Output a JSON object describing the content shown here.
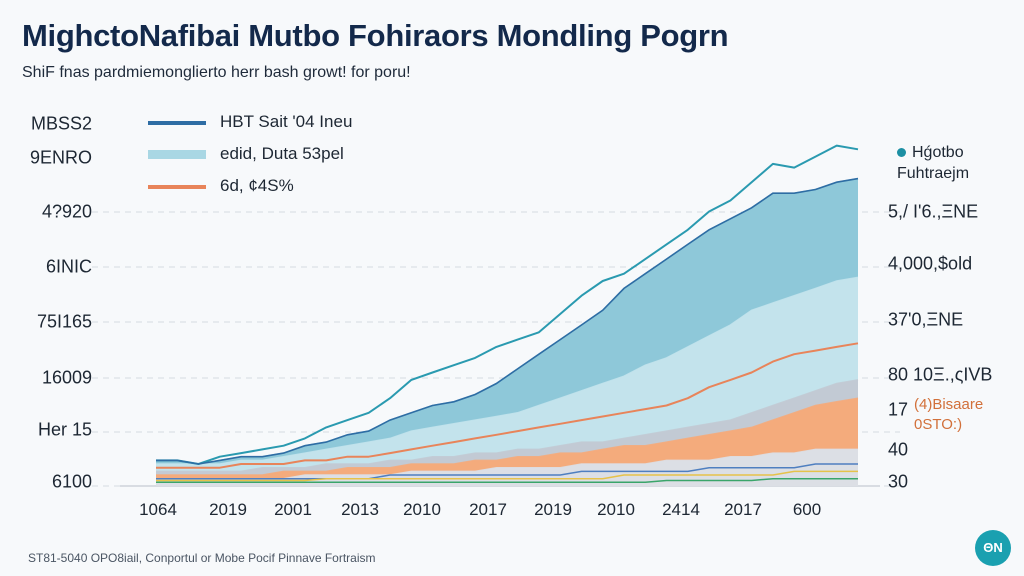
{
  "chart_data": {
    "type": "area",
    "title": "MighctoNafibai Mutbo Fohiraors Mondling Pogrn",
    "subtitle": "ShiF fnas pardmiemonglierto herr bash growt! for poru!",
    "x_tick_labels": [
      "1064",
      "2019",
      "2001",
      "2013",
      "2010",
      "2017",
      "2019",
      "2010",
      "2414",
      "2017",
      "600"
    ],
    "y_axis_label": "MBSS2",
    "y_tick_labels_left": [
      "9ENRO",
      "4?920",
      "6INIC",
      "75I165",
      "16009",
      "Her 15",
      "6100"
    ],
    "y_tick_labels_right": [
      "5,/ I'6.,ΞNE",
      "4,000,$old",
      "37'0,ΞNE",
      "80 10Ξ.,ςIVB",
      "17",
      "40",
      "30"
    ],
    "ylim": [
      0,
      100
    ],
    "legend": [
      {
        "label": "HBT Sait '04 Ineu",
        "kind": "line",
        "color": "#2e6da4"
      },
      {
        "label": "edid, Duta 53pel",
        "kind": "area",
        "color": "#a9d7e4"
      },
      {
        "label": "6d, ¢4S%",
        "kind": "line",
        "color": "#e8845a"
      }
    ],
    "annotation": "Hǵotbo Fuhtraejm",
    "orange_note": [
      "(4)Bisaare",
      "0STO:)"
    ],
    "series": [
      {
        "name": "HBT Sait '04 Ineu",
        "kind": "line",
        "color": "#2a9ab0",
        "values": [
          7,
          7,
          6,
          8,
          9,
          10,
          11,
          13,
          16,
          18,
          20,
          24,
          29,
          31,
          33,
          35,
          38,
          40,
          42,
          47,
          52,
          56,
          58,
          62,
          66,
          70,
          75,
          78,
          83,
          88,
          87,
          90,
          93,
          92
        ]
      },
      {
        "name": "Upper area",
        "kind": "area",
        "color": "#8ec8d9",
        "values": [
          7,
          7,
          6,
          7,
          8,
          8,
          9,
          11,
          12,
          14,
          15,
          18,
          20,
          22,
          23,
          25,
          28,
          32,
          36,
          40,
          44,
          48,
          54,
          58,
          62,
          66,
          70,
          73,
          76,
          80,
          80,
          81,
          83,
          84
        ]
      },
      {
        "name": "edid, Duta 53pel",
        "kind": "area",
        "color": "#c3e3ec",
        "values": [
          6,
          6,
          6,
          6,
          7,
          7,
          8,
          9,
          10,
          11,
          12,
          13,
          15,
          16,
          17,
          18,
          19,
          20,
          22,
          24,
          26,
          28,
          30,
          33,
          35,
          38,
          41,
          44,
          48,
          50,
          52,
          54,
          56,
          57
        ]
      },
      {
        "name": "6d, ¢4S%",
        "kind": "line",
        "color": "#e8845a",
        "values": [
          5,
          5,
          5,
          5,
          6,
          6,
          6,
          7,
          7,
          8,
          8,
          9,
          10,
          11,
          12,
          13,
          14,
          15,
          16,
          17,
          18,
          19,
          20,
          21,
          22,
          24,
          27,
          29,
          31,
          34,
          36,
          37,
          38,
          39
        ]
      },
      {
        "name": "Grey band",
        "kind": "area",
        "color": "#c2cad4",
        "values": [
          4,
          4,
          4,
          4,
          4,
          5,
          5,
          5,
          6,
          6,
          6,
          7,
          7,
          8,
          8,
          9,
          9,
          10,
          10,
          11,
          12,
          12,
          13,
          14,
          15,
          16,
          17,
          18,
          20,
          22,
          24,
          26,
          28,
          29
        ]
      },
      {
        "name": "Orange band",
        "kind": "area",
        "color": "#f4ab7c",
        "values": [
          3,
          3,
          3,
          3,
          3,
          3,
          4,
          4,
          4,
          5,
          5,
          5,
          6,
          6,
          6,
          7,
          7,
          8,
          8,
          9,
          9,
          10,
          11,
          11,
          12,
          13,
          14,
          15,
          16,
          18,
          20,
          22,
          23,
          24
        ]
      },
      {
        "name": "Light grey band",
        "kind": "area",
        "color": "#dcdfe5",
        "values": [
          2,
          2,
          2,
          2,
          2,
          2,
          2,
          3,
          3,
          3,
          3,
          3,
          4,
          4,
          4,
          4,
          5,
          5,
          5,
          5,
          6,
          6,
          6,
          6,
          7,
          7,
          7,
          8,
          8,
          9,
          9,
          10,
          10,
          10
        ]
      },
      {
        "name": "Blue thin line",
        "kind": "line",
        "color": "#4f7fc0",
        "values": [
          2,
          2,
          2,
          2,
          2,
          2,
          2,
          2,
          2,
          2,
          2,
          3,
          3,
          3,
          3,
          3,
          3,
          3,
          3,
          3,
          4,
          4,
          4,
          4,
          4,
          4,
          5,
          5,
          5,
          5,
          5,
          6,
          6,
          6
        ]
      },
      {
        "name": "Yellow thin line",
        "kind": "line",
        "color": "#e6c24a",
        "values": [
          1.5,
          1.5,
          1.5,
          1.5,
          1.5,
          1.5,
          1.5,
          1.5,
          2,
          2,
          2,
          2,
          2,
          2,
          2,
          2,
          2,
          2,
          2,
          2,
          2,
          2,
          3,
          3,
          3,
          3,
          3,
          3,
          3,
          3,
          4,
          4,
          4,
          4
        ]
      },
      {
        "name": "Green thin line",
        "kind": "line",
        "color": "#3aa56a",
        "values": [
          1,
          1,
          1,
          1,
          1,
          1,
          1,
          1,
          1,
          1,
          1,
          1,
          1,
          1,
          1,
          1,
          1,
          1,
          1,
          1,
          1,
          1,
          1,
          1,
          1.5,
          1.5,
          1.5,
          1.5,
          1.5,
          2,
          2,
          2,
          2,
          2
        ]
      }
    ]
  },
  "footer": {
    "source": "ST81-5040 OPO8iail, Conportul or Mobe Pocif Pinnave Fortraism",
    "logo": "ΘN"
  }
}
